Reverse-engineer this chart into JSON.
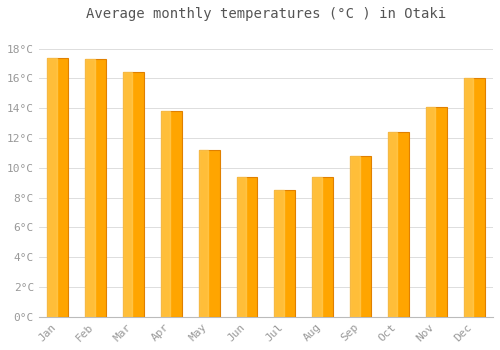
{
  "title": "Average monthly temperatures (°C ) in Otaki",
  "months": [
    "Jan",
    "Feb",
    "Mar",
    "Apr",
    "May",
    "Jun",
    "Jul",
    "Aug",
    "Sep",
    "Oct",
    "Nov",
    "Dec"
  ],
  "values": [
    17.4,
    17.3,
    16.4,
    13.8,
    11.2,
    9.4,
    8.5,
    9.4,
    10.8,
    12.4,
    14.1,
    16.0
  ],
  "bar_color_face": "#FFA500",
  "bar_color_light": "#FFD060",
  "bar_color_edge": "#E08000",
  "background_color": "#FFFFFF",
  "grid_color": "#DDDDDD",
  "ytick_labels": [
    "0°C",
    "2°C",
    "4°C",
    "6°C",
    "8°C",
    "10°C",
    "12°C",
    "14°C",
    "16°C",
    "18°C"
  ],
  "ytick_values": [
    0,
    2,
    4,
    6,
    8,
    10,
    12,
    14,
    16,
    18
  ],
  "ylim": [
    0,
    19.5
  ],
  "title_fontsize": 10,
  "tick_fontsize": 8,
  "tick_color": "#999999",
  "title_color": "#555555",
  "font_family": "monospace",
  "bar_width": 0.55
}
